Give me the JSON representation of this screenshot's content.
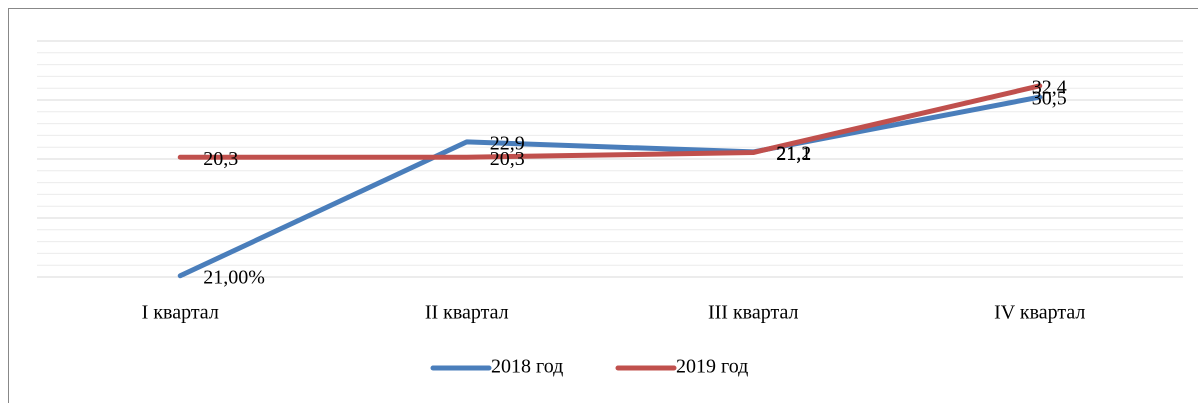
{
  "chart_data": {
    "type": "line",
    "categories": [
      "I квартал",
      "II квартал",
      "III квартал",
      "IV квартал"
    ],
    "series": [
      {
        "name": "2018 год",
        "color": "#4a7ebb",
        "values": [
          0.21,
          22.9,
          21.2,
          30.5
        ],
        "value_labels": [
          "21,00%",
          "22,9",
          "21,2",
          "30,5"
        ]
      },
      {
        "name": "2019 год",
        "color": "#c0504d",
        "values": [
          20.3,
          20.3,
          21.1,
          32.4
        ],
        "value_labels": [
          "20,3",
          "20,3",
          "21,1",
          "32,4"
        ]
      }
    ],
    "ylim": [
      0,
      40
    ],
    "yticks": [
      0,
      10,
      20,
      30,
      40
    ],
    "minor_yticks": [
      2,
      4,
      6,
      8,
      12,
      14,
      16,
      18,
      22,
      24,
      26,
      28,
      32,
      34,
      36,
      38
    ],
    "grid": true,
    "legend": "bottom"
  }
}
